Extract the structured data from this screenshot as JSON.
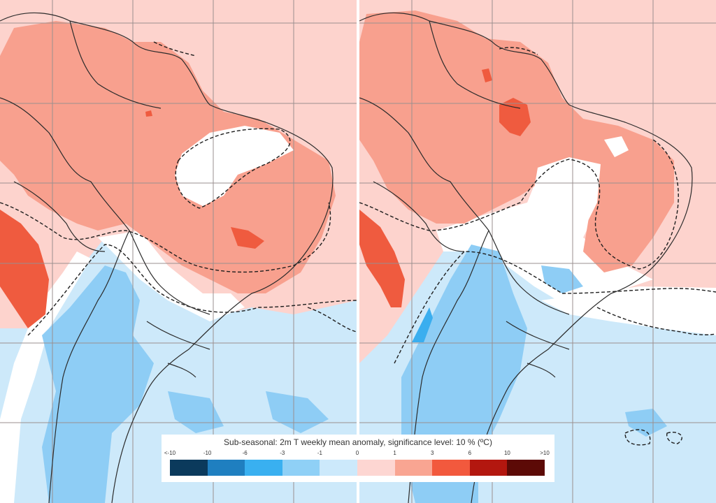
{
  "legend": {
    "title": "Sub-seasonal: 2m T weekly mean anomaly, significance level: 10 % (ºC)",
    "tick_labels": [
      "<-10",
      "-10",
      "-6",
      "-3",
      "-1",
      "0",
      "1",
      "3",
      "6",
      "10",
      ">10"
    ],
    "colors": [
      "#0b3a5c",
      "#1f7fc0",
      "#39b0f0",
      "#8fd0f6",
      "#cce9fb",
      "#fdd6d2",
      "#f9a592",
      "#f2593d",
      "#b3170f",
      "#5c0a06"
    ]
  },
  "map_colors": {
    "cold_1": "#cde9fa",
    "cold_2": "#8ecdf5",
    "cold_3": "#3aaeef",
    "neutral": "#ffffff",
    "warm_1": "#fdd3cd",
    "warm_2": "#f8a08e",
    "warm_3": "#ef5b3f",
    "grid": "#9a8f8f",
    "border": "#2b2b2b"
  },
  "panels": [
    "left",
    "right"
  ]
}
